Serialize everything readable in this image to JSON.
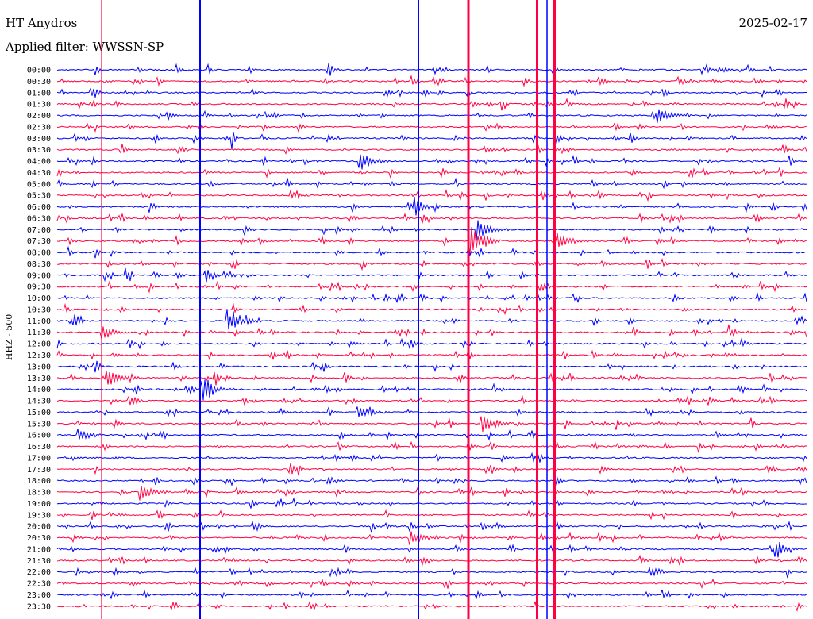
{
  "header": {
    "station": "HT Anydros",
    "date": "2025-02-17",
    "filter_label": "Applied filter: WWSSN-SP"
  },
  "chart_data": {
    "type": "helicorder",
    "title": "HT Anydros",
    "subtitle": "Applied filter: WWSSN-SP",
    "date": "2025-02-17",
    "ylabel": "HHZ - 500",
    "xlabel": "",
    "grid": false,
    "legend": "none",
    "line_interval_minutes": 30,
    "colors": [
      "#0000ff",
      "#ff0044"
    ],
    "tick_labels": [
      "00:00",
      "00:30",
      "01:00",
      "01:30",
      "02:00",
      "02:30",
      "03:00",
      "03:30",
      "04:00",
      "04:30",
      "05:00",
      "05:30",
      "06:00",
      "06:30",
      "07:00",
      "07:30",
      "08:00",
      "08:30",
      "09:00",
      "09:30",
      "10:00",
      "10:30",
      "11:00",
      "11:30",
      "12:00",
      "12:30",
      "13:00",
      "13:30",
      "14:00",
      "14:30",
      "15:00",
      "15:30",
      "16:00",
      "16:30",
      "17:00",
      "17:30",
      "18:00",
      "18:30",
      "19:00",
      "19:30",
      "20:00",
      "20:30",
      "21:00",
      "21:30",
      "22:00",
      "22:30",
      "23:00",
      "23:30"
    ],
    "major_events": [
      {
        "line": 4,
        "minute": 24.0,
        "amp": 12
      },
      {
        "line": 8,
        "minute": 12.1,
        "amp": 14
      },
      {
        "line": 12,
        "minute": 14.3,
        "amp": 9
      },
      {
        "line": 14,
        "minute": 16.8,
        "amp": 16
      },
      {
        "line": 15,
        "minute": 16.5,
        "amp": 22
      },
      {
        "line": 15,
        "minute": 20.0,
        "amp": 12
      },
      {
        "line": 22,
        "minute": 6.8,
        "amp": 14
      },
      {
        "line": 23,
        "minute": 1.8,
        "amp": 10
      },
      {
        "line": 27,
        "minute": 2.0,
        "amp": 12
      },
      {
        "line": 28,
        "minute": 5.8,
        "amp": 16
      },
      {
        "line": 30,
        "minute": 12.0,
        "amp": 10
      },
      {
        "line": 31,
        "minute": 17.0,
        "amp": 12
      },
      {
        "line": 32,
        "minute": 0.8,
        "amp": 10
      },
      {
        "line": 37,
        "minute": 3.3,
        "amp": 12
      },
      {
        "line": 41,
        "minute": 14.1,
        "amp": 9
      },
      {
        "line": 44,
        "minute": 23.7,
        "amp": 8
      },
      {
        "line": 42,
        "minute": 28.7,
        "amp": 10
      }
    ]
  }
}
